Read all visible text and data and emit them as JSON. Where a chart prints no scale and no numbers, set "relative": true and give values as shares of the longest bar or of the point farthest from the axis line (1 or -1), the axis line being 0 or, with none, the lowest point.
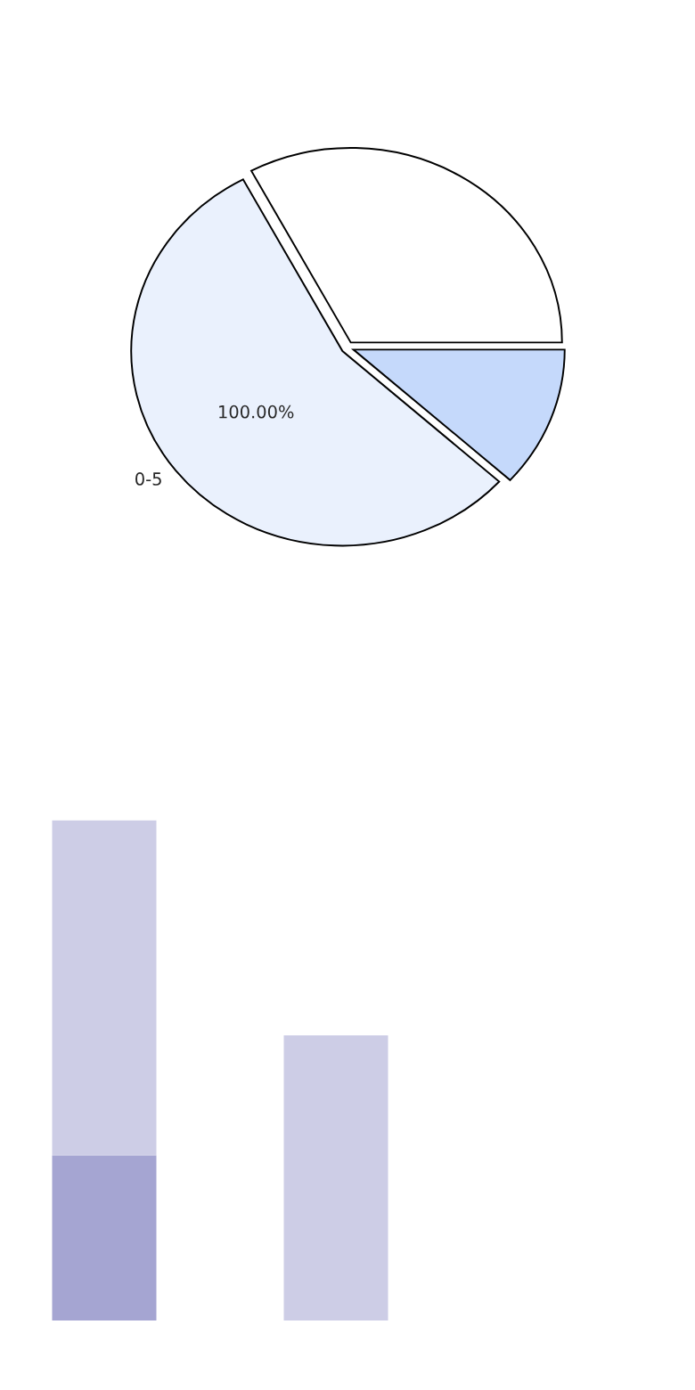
{
  "chart_data": [
    {
      "type": "pie",
      "categories": [
        null,
        "0-5",
        null
      ],
      "values": [
        32.8,
        55.5,
        11.7
      ],
      "colors": [
        "#ffffff",
        "#eaf1fd",
        "#c5d9fb"
      ],
      "annotations": [
        "100.00%"
      ]
    },
    {
      "type": "bar",
      "relative": true,
      "stacked": true,
      "categories": [
        null,
        null
      ],
      "series": [
        {
          "color": "#a5a5d2",
          "values": [
            0.33,
            0
          ]
        },
        {
          "color": "#cdcde6",
          "values": [
            0.67,
            0.57
          ]
        }
      ]
    }
  ]
}
